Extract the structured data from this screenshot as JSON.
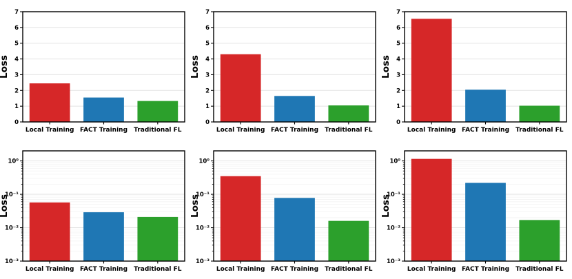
{
  "figure": {
    "background": "#ffffff",
    "grid_color": "#e2e2e2",
    "minor_grid_color": "#f3f3f3",
    "spine_color": "#000000"
  },
  "chart_data": [
    {
      "id": "top-left",
      "type": "bar",
      "scale": "linear",
      "ylabel": "Loss",
      "categories": [
        "Local Training",
        "FACT Training",
        "Traditional FL"
      ],
      "values": [
        2.45,
        1.55,
        1.33
      ],
      "colors": [
        "#d62728",
        "#1f77b4",
        "#2ca02c"
      ],
      "ylim": [
        0,
        7
      ],
      "yticks": [
        0,
        1,
        2,
        3,
        4,
        5,
        6,
        7
      ],
      "ytick_labels": [
        "0",
        "1",
        "2",
        "3",
        "4",
        "5",
        "6",
        "7"
      ],
      "grid": true,
      "legend": false
    },
    {
      "id": "top-center",
      "type": "bar",
      "scale": "linear",
      "ylabel": "Loss",
      "categories": [
        "Local Training",
        "FACT Training",
        "Traditional FL"
      ],
      "values": [
        4.3,
        1.65,
        1.05
      ],
      "colors": [
        "#d62728",
        "#1f77b4",
        "#2ca02c"
      ],
      "ylim": [
        0,
        7
      ],
      "yticks": [
        0,
        1,
        2,
        3,
        4,
        5,
        6,
        7
      ],
      "ytick_labels": [
        "0",
        "1",
        "2",
        "3",
        "4",
        "5",
        "6",
        "7"
      ],
      "grid": true,
      "legend": false
    },
    {
      "id": "top-right",
      "type": "bar",
      "scale": "linear",
      "ylabel": "Loss",
      "categories": [
        "Local Training",
        "FACT Training",
        "Traditional FL"
      ],
      "values": [
        6.55,
        2.05,
        1.03
      ],
      "colors": [
        "#d62728",
        "#1f77b4",
        "#2ca02c"
      ],
      "ylim": [
        0,
        7
      ],
      "yticks": [
        0,
        1,
        2,
        3,
        4,
        5,
        6,
        7
      ],
      "ytick_labels": [
        "0",
        "1",
        "2",
        "3",
        "4",
        "5",
        "6",
        "7"
      ],
      "grid": true,
      "legend": false
    },
    {
      "id": "bottom-left",
      "type": "bar",
      "scale": "log",
      "ylabel": "Loss",
      "categories": [
        "Local Training",
        "FACT Training",
        "Traditional FL"
      ],
      "values": [
        0.057,
        0.029,
        0.021
      ],
      "colors": [
        "#d62728",
        "#1f77b4",
        "#2ca02c"
      ],
      "ylim": [
        0.001,
        2
      ],
      "yticks": [
        1,
        0.1,
        0.01,
        0.001
      ],
      "ytick_labels": [
        "10⁰",
        "10⁻¹",
        "10⁻²",
        "10⁻³"
      ],
      "grid": true,
      "legend": false
    },
    {
      "id": "bottom-center",
      "type": "bar",
      "scale": "log",
      "ylabel": "Loss",
      "categories": [
        "Local Training",
        "FACT Training",
        "Traditional FL"
      ],
      "values": [
        0.35,
        0.078,
        0.016
      ],
      "colors": [
        "#d62728",
        "#1f77b4",
        "#2ca02c"
      ],
      "ylim": [
        0.001,
        2
      ],
      "yticks": [
        1,
        0.1,
        0.01,
        0.001
      ],
      "ytick_labels": [
        "10⁰",
        "10⁻¹",
        "10⁻²",
        "10⁻³"
      ],
      "grid": true,
      "legend": false
    },
    {
      "id": "bottom-right",
      "type": "bar",
      "scale": "log",
      "ylabel": "Loss",
      "categories": [
        "Local Training",
        "FACT Training",
        "Traditional FL"
      ],
      "values": [
        1.15,
        0.22,
        0.017
      ],
      "colors": [
        "#d62728",
        "#1f77b4",
        "#2ca02c"
      ],
      "ylim": [
        0.001,
        2
      ],
      "yticks": [
        1,
        0.1,
        0.01,
        0.001
      ],
      "ytick_labels": [
        "10⁰",
        "10⁻¹",
        "10⁻²",
        "10⁻³"
      ],
      "grid": true,
      "legend": false
    }
  ]
}
